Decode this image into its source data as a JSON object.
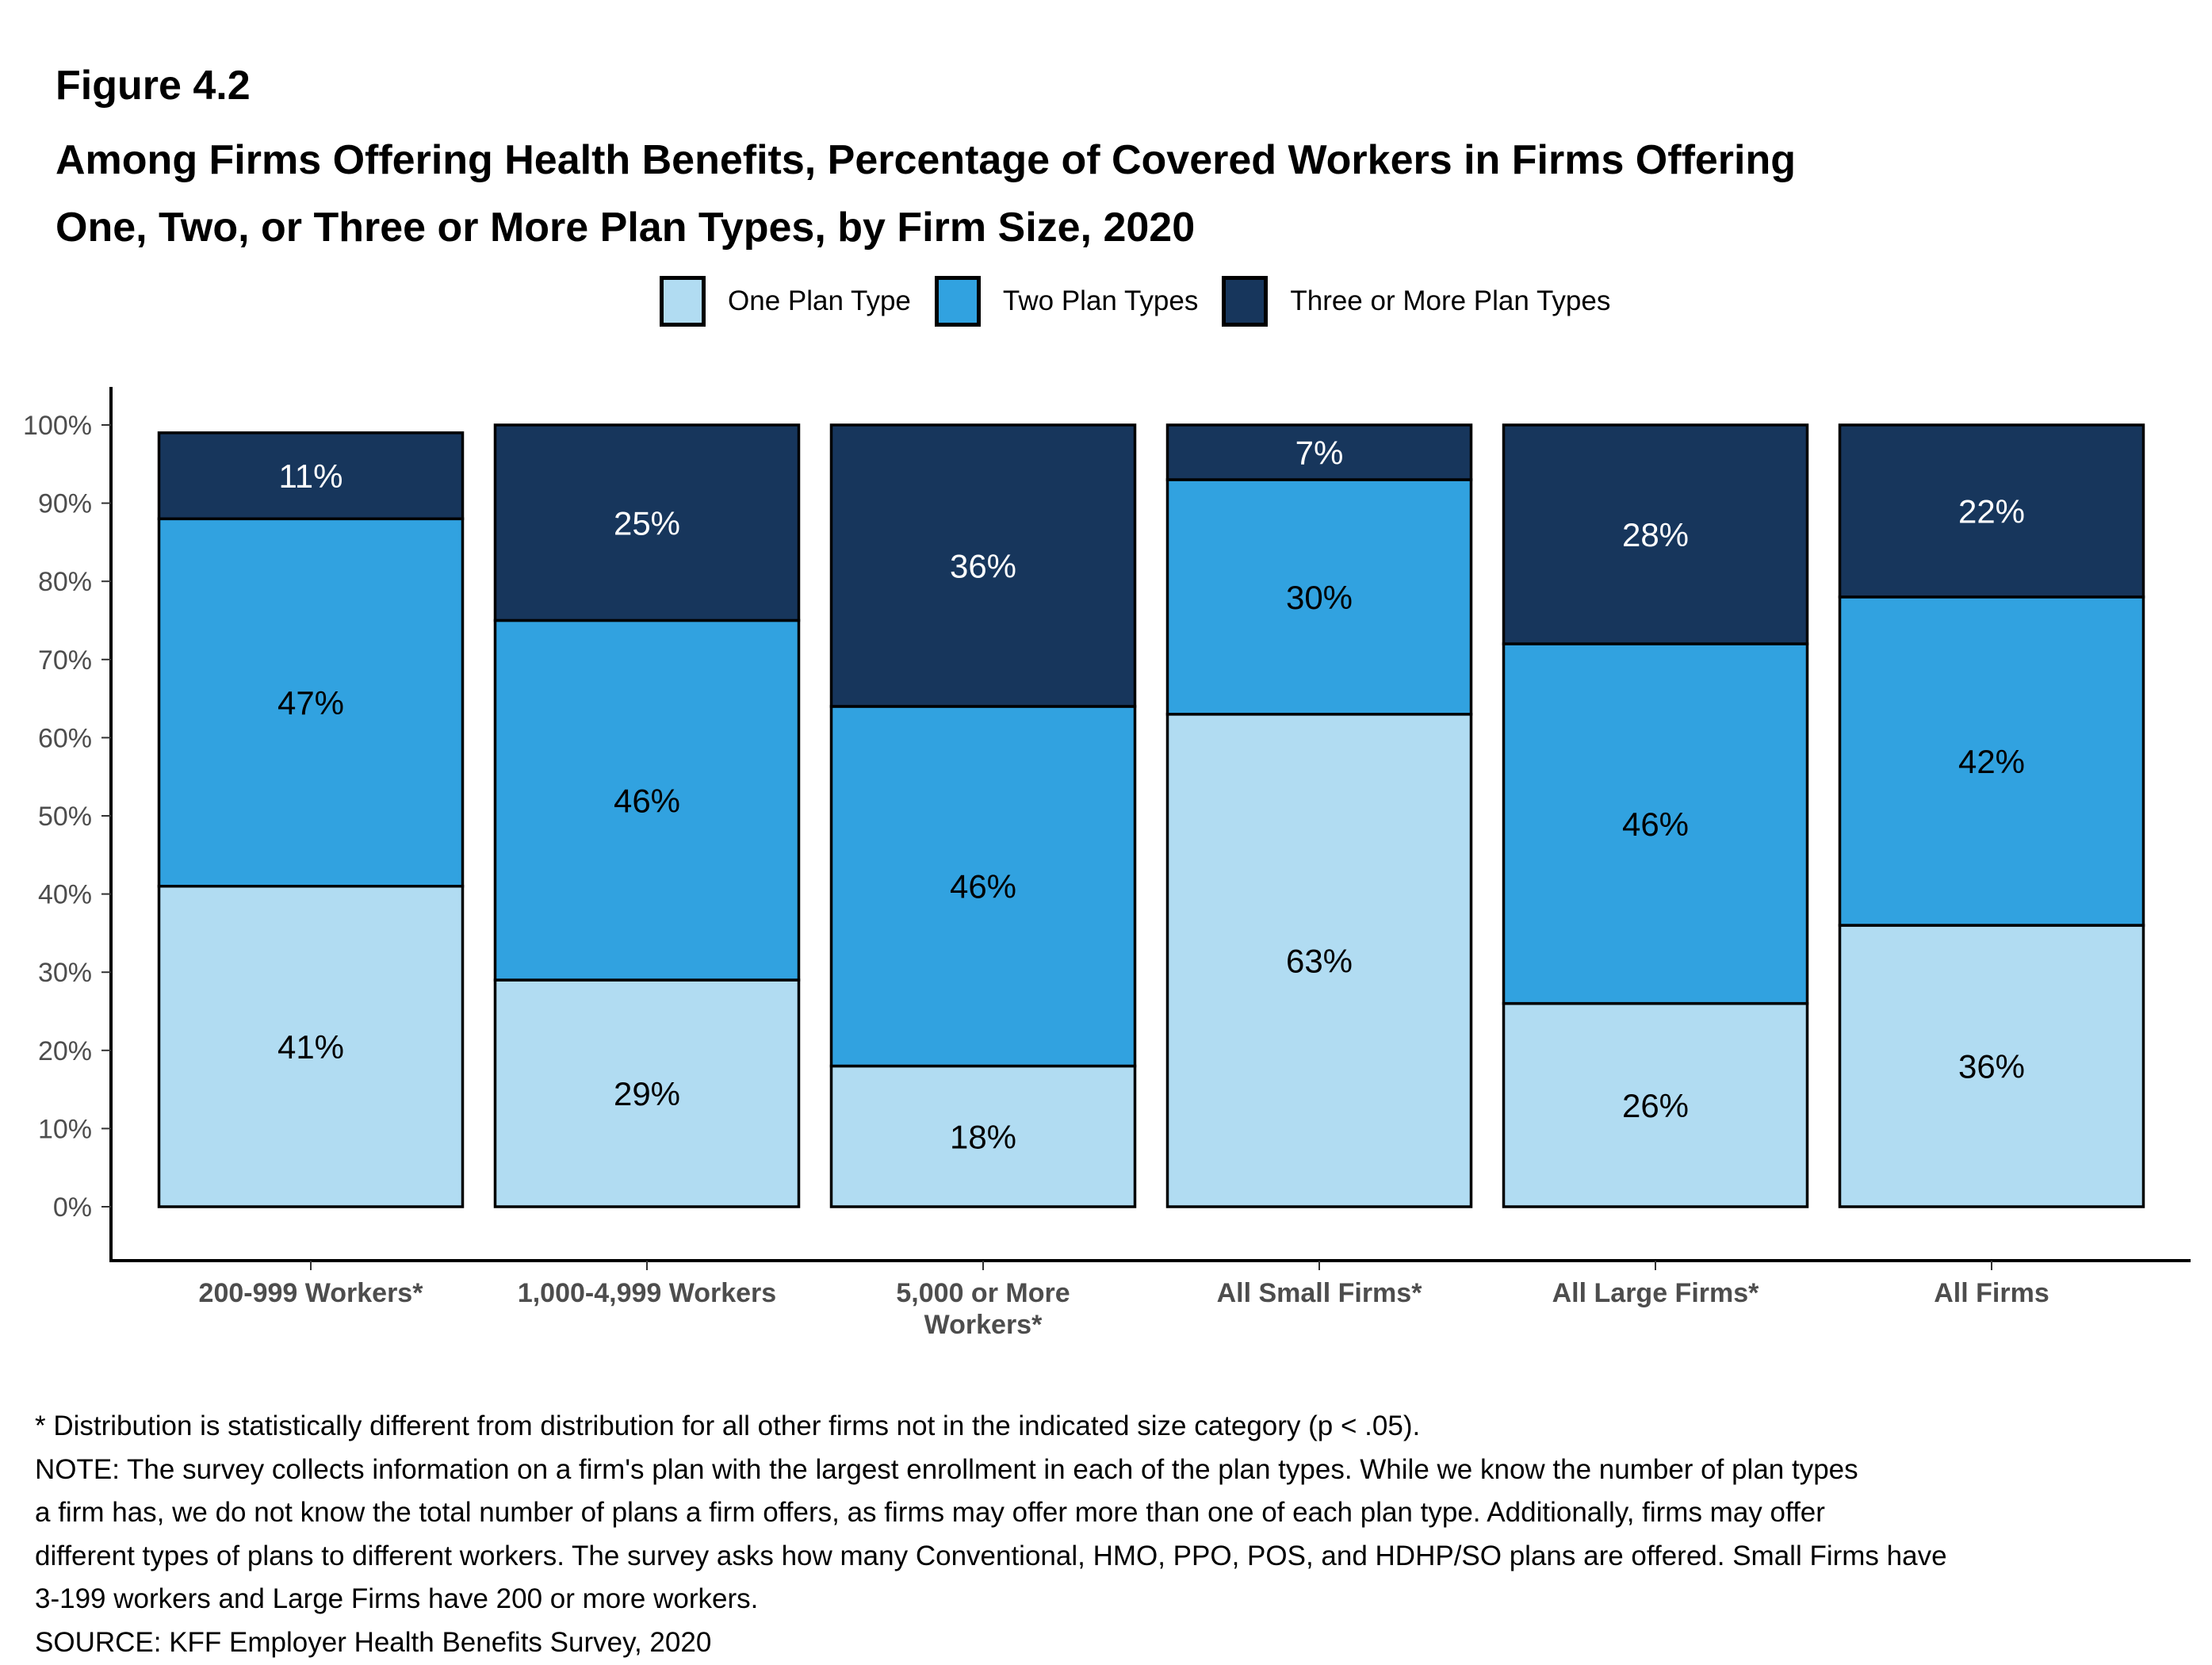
{
  "figure_number": "Figure 4.2",
  "title_lines": [
    "Among Firms Offering Health Benefits, Percentage of Covered Workers in Firms Offering",
    "One, Two, or Three or More Plan Types, by Firm Size, 2020"
  ],
  "footnotes": [
    "* Distribution is statistically different from distribution for all other firms not in the indicated size category (p < .05).",
    "NOTE: The survey collects information on a firm's plan with the largest enrollment in each of the plan types. While we know the number of plan types",
    "a firm has, we do not know the total number of plans a firm offers, as firms may offer more than one of each plan type. Additionally, firms may offer",
    "different types of plans to different workers. The survey asks how many Conventional, HMO, PPO, POS, and HDHP/SO plans are offered. Small Firms have",
    "3-199 workers and Large Firms have 200 or more workers.",
    "SOURCE: KFF Employer Health Benefits Survey, 2020"
  ],
  "chart_data": {
    "type": "bar",
    "stacked": true,
    "title": "Among Firms Offering Health Benefits, Percentage of Covered Workers in Firms Offering One, Two, or Three or More Plan Types, by Firm Size, 2020",
    "xlabel": "",
    "ylabel": "",
    "ylim": [
      0,
      100
    ],
    "yticks": [
      "0%",
      "10%",
      "20%",
      "30%",
      "40%",
      "50%",
      "60%",
      "70%",
      "80%",
      "90%",
      "100%"
    ],
    "grid": false,
    "legend_position": "top-center",
    "categories": [
      [
        "200-999 Workers*"
      ],
      [
        "1,000-4,999 Workers"
      ],
      [
        "5,000 or More",
        "Workers*"
      ],
      [
        "All Small Firms*"
      ],
      [
        "All Large Firms*"
      ],
      [
        "All Firms"
      ]
    ],
    "series": [
      {
        "name": "One Plan Type",
        "color": "#b1dcf2",
        "label_color": "#000000",
        "values": [
          41,
          29,
          18,
          63,
          26,
          36
        ],
        "labels": [
          "41%",
          "29%",
          "18%",
          "63%",
          "26%",
          "36%"
        ]
      },
      {
        "name": "Two Plan Types",
        "color": "#31a2e0",
        "label_color": "#000000",
        "values": [
          47,
          46,
          46,
          30,
          46,
          42
        ],
        "labels": [
          "47%",
          "46%",
          "46%",
          "30%",
          "46%",
          "42%"
        ]
      },
      {
        "name": "Three or More Plan Types",
        "color": "#17365c",
        "label_color": "#ffffff",
        "values": [
          11,
          25,
          36,
          7,
          28,
          22
        ],
        "labels": [
          "11%",
          "25%",
          "36%",
          "7%",
          "28%",
          "22%"
        ]
      }
    ]
  }
}
